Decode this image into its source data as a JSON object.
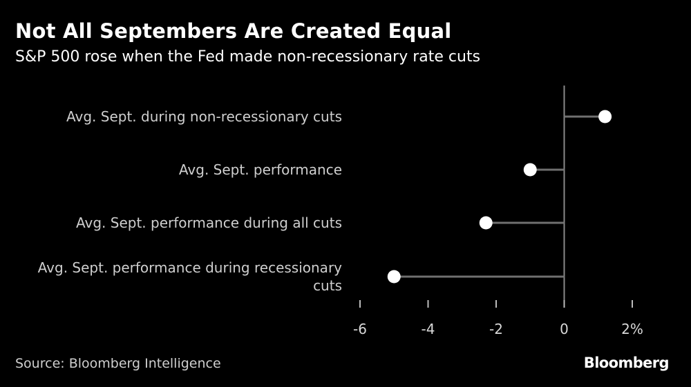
{
  "header": {
    "title": "Not All Septembers Are Created Equal",
    "subtitle": "S&P 500 rose when the Fed made non-recessionary rate cuts"
  },
  "footer": {
    "source": "Source: Bloomberg Intelligence",
    "logo_text": "Bloomberg"
  },
  "colors": {
    "background": "#000000",
    "marker": "#ffffff",
    "stem": "#707070",
    "axis": "#8a8a8a",
    "text": "#cfcfcf"
  },
  "chart_data": {
    "type": "dot",
    "categories": [
      [
        "Avg. Sept. during non-recessionary cuts"
      ],
      [
        "Avg. Sept. performance"
      ],
      [
        "Avg. Sept. performance during all cuts"
      ],
      [
        "Avg. Sept. performance during recessionary",
        "cuts"
      ]
    ],
    "values": [
      1.2,
      -1.0,
      -2.3,
      -5.0
    ],
    "xlim": [
      -6,
      2
    ],
    "x_ticks": [
      -6,
      -4,
      -2,
      0,
      2
    ],
    "x_tick_labels": [
      "-6",
      "-4",
      "-2",
      "0",
      "2%"
    ],
    "zero_line": 0,
    "grid": false,
    "legend": "none"
  }
}
